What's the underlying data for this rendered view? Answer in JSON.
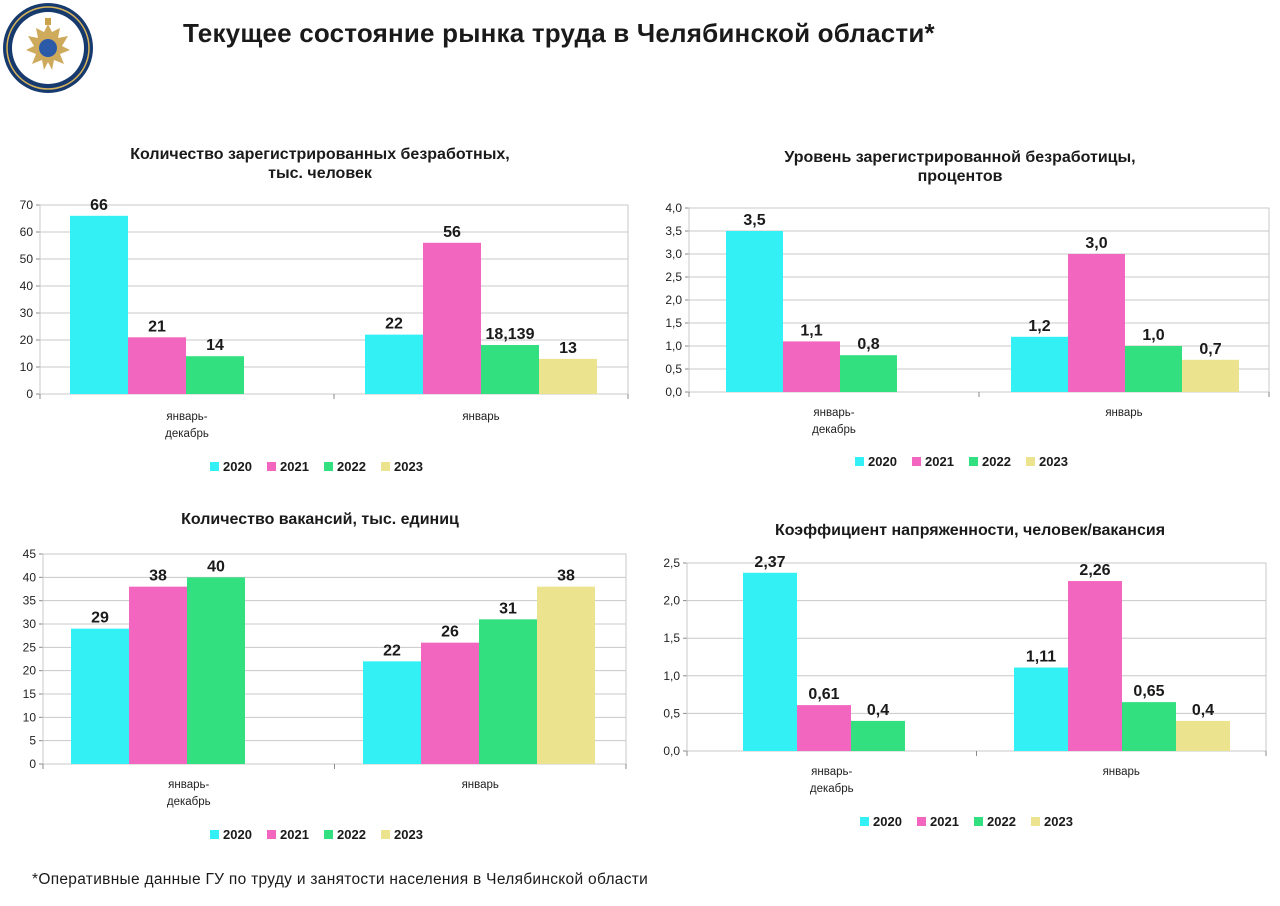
{
  "header": {
    "title": "Текущее состояние рынка труда в Челябинской области*"
  },
  "footer": {
    "note": "*Оперативные данные ГУ по труду и занятости населения в Челябинской области"
  },
  "colors": {
    "2020": "#33f0f5",
    "2021": "#f266bf",
    "2022": "#33e07f",
    "2023": "#ece38f"
  },
  "chart_data": [
    {
      "id": "unemployed",
      "type": "bar",
      "title_lines": [
        "Количество зарегистрированных безработных,",
        "тыс. человек"
      ],
      "categories": [
        [
          "январь-",
          "декабрь"
        ],
        [
          "январь"
        ]
      ],
      "series": [
        {
          "name": "2020",
          "values": [
            66,
            22
          ],
          "labels": [
            "66",
            "22"
          ]
        },
        {
          "name": "2021",
          "values": [
            21,
            56
          ],
          "labels": [
            "21",
            "56"
          ]
        },
        {
          "name": "2022",
          "values": [
            14,
            18.139
          ],
          "labels": [
            "14",
            "18,139"
          ]
        },
        {
          "name": "2023",
          "values": [
            null,
            13
          ],
          "labels": [
            "",
            "13"
          ]
        }
      ],
      "ylim": [
        0,
        70
      ],
      "yticks": [
        0,
        10,
        20,
        30,
        40,
        50,
        60,
        70
      ],
      "ytick_labels": [
        "0",
        "10",
        "20",
        "30",
        "40",
        "50",
        "60",
        "70"
      ],
      "legend": [
        "2020",
        "2021",
        "2022",
        "2023"
      ]
    },
    {
      "id": "unemployment-rate",
      "type": "bar",
      "title_lines": [
        "Уровень зарегистрированной безработицы,",
        "процентов"
      ],
      "categories": [
        [
          "январь-",
          "декабрь"
        ],
        [
          "январь"
        ]
      ],
      "series": [
        {
          "name": "2020",
          "values": [
            3.5,
            1.2
          ],
          "labels": [
            "3,5",
            "1,2"
          ]
        },
        {
          "name": "2021",
          "values": [
            1.1,
            3.0
          ],
          "labels": [
            "1,1",
            "3,0"
          ]
        },
        {
          "name": "2022",
          "values": [
            0.8,
            1.0
          ],
          "labels": [
            "0,8",
            "1,0"
          ]
        },
        {
          "name": "2023",
          "values": [
            null,
            0.7
          ],
          "labels": [
            "",
            "0,7"
          ]
        }
      ],
      "ylim": [
        0,
        4
      ],
      "yticks": [
        0,
        0.5,
        1,
        1.5,
        2,
        2.5,
        3,
        3.5,
        4
      ],
      "ytick_labels": [
        "0,0",
        "0,5",
        "1,0",
        "1,5",
        "2,0",
        "2,5",
        "3,0",
        "3,5",
        "4,0"
      ],
      "legend": [
        "2020",
        "2021",
        "2022",
        "2023"
      ]
    },
    {
      "id": "vacancies",
      "type": "bar",
      "title_lines": [
        "Количество вакансий, тыс. единиц"
      ],
      "categories": [
        [
          "январь-",
          "декабрь"
        ],
        [
          "январь"
        ]
      ],
      "series": [
        {
          "name": "2020",
          "values": [
            29,
            22
          ],
          "labels": [
            "29",
            "22"
          ]
        },
        {
          "name": "2021",
          "values": [
            38,
            26
          ],
          "labels": [
            "38",
            "26"
          ]
        },
        {
          "name": "2022",
          "values": [
            40,
            31
          ],
          "labels": [
            "40",
            "31"
          ]
        },
        {
          "name": "2023",
          "values": [
            null,
            38
          ],
          "labels": [
            "",
            "38"
          ]
        }
      ],
      "ylim": [
        0,
        45
      ],
      "yticks": [
        0,
        5,
        10,
        15,
        20,
        25,
        30,
        35,
        40,
        45
      ],
      "ytick_labels": [
        "0",
        "5",
        "10",
        "15",
        "20",
        "25",
        "30",
        "35",
        "40",
        "45"
      ],
      "legend": [
        "2020",
        "2021",
        "2022",
        "2023"
      ]
    },
    {
      "id": "tension",
      "type": "bar",
      "title_lines": [
        "Коэффициент напряженности, человек/вакансия"
      ],
      "categories": [
        [
          "январь-",
          "декабрь"
        ],
        [
          "январь"
        ]
      ],
      "series": [
        {
          "name": "2020",
          "values": [
            2.37,
            1.11
          ],
          "labels": [
            "2,37",
            "1,11"
          ]
        },
        {
          "name": "2021",
          "values": [
            0.61,
            2.26
          ],
          "labels": [
            "0,61",
            "2,26"
          ]
        },
        {
          "name": "2022",
          "values": [
            0.4,
            0.65
          ],
          "labels": [
            "0,4",
            "0,65"
          ]
        },
        {
          "name": "2023",
          "values": [
            null,
            0.4
          ],
          "labels": [
            "",
            "0,4"
          ]
        }
      ],
      "ylim": [
        0,
        2.5
      ],
      "yticks": [
        0,
        0.5,
        1,
        1.5,
        2,
        2.5
      ],
      "ytick_labels": [
        "0,0",
        "0,5",
        "1,0",
        "1,5",
        "2,0",
        "2,5"
      ],
      "legend": [
        "2020",
        "2021",
        "2022",
        "2023"
      ]
    }
  ]
}
